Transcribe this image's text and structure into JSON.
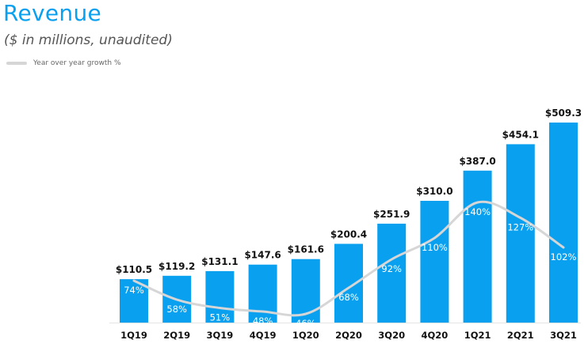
{
  "header": {
    "title": "Revenue",
    "subtitle": "($ in millions,  unaudited)"
  },
  "colors": {
    "bar": "#0aa0f0",
    "line": "#d6d6d6",
    "title": "#0aa0f0"
  },
  "chart_data": {
    "type": "bar",
    "title": "Revenue",
    "subtitle": "($ in millions,  unaudited)",
    "categories": [
      "1Q19",
      "2Q19",
      "3Q19",
      "4Q19",
      "1Q20",
      "2Q20",
      "3Q20",
      "4Q20",
      "1Q21",
      "2Q21",
      "3Q21"
    ],
    "series": [
      {
        "name": "Revenue",
        "type": "bar",
        "values": [
          110.5,
          119.2,
          131.1,
          147.6,
          161.6,
          200.4,
          251.9,
          310.0,
          387.0,
          454.1,
          509.3
        ],
        "labels": [
          "$110.5",
          "$119.2",
          "$131.1",
          "$147.6",
          "$161.6",
          "$200.4",
          "$251.9",
          "$310.0",
          "$387.0",
          "$454.1",
          "$509.3"
        ]
      },
      {
        "name": "Year over year growth %",
        "type": "line",
        "values": [
          74,
          58,
          51,
          48,
          46,
          68,
          92,
          110,
          140,
          127,
          102
        ],
        "labels": [
          "74%",
          "58%",
          "51%",
          "48%",
          "46%",
          "68%",
          "92%",
          "110%",
          "140%",
          "127%",
          "102%"
        ]
      }
    ],
    "legend": {
      "position": "top-left",
      "entries": [
        "Year over year growth %"
      ]
    },
    "xlabel": "",
    "ylabel": "",
    "ylim": [
      0,
      509.3
    ],
    "grid": false
  }
}
